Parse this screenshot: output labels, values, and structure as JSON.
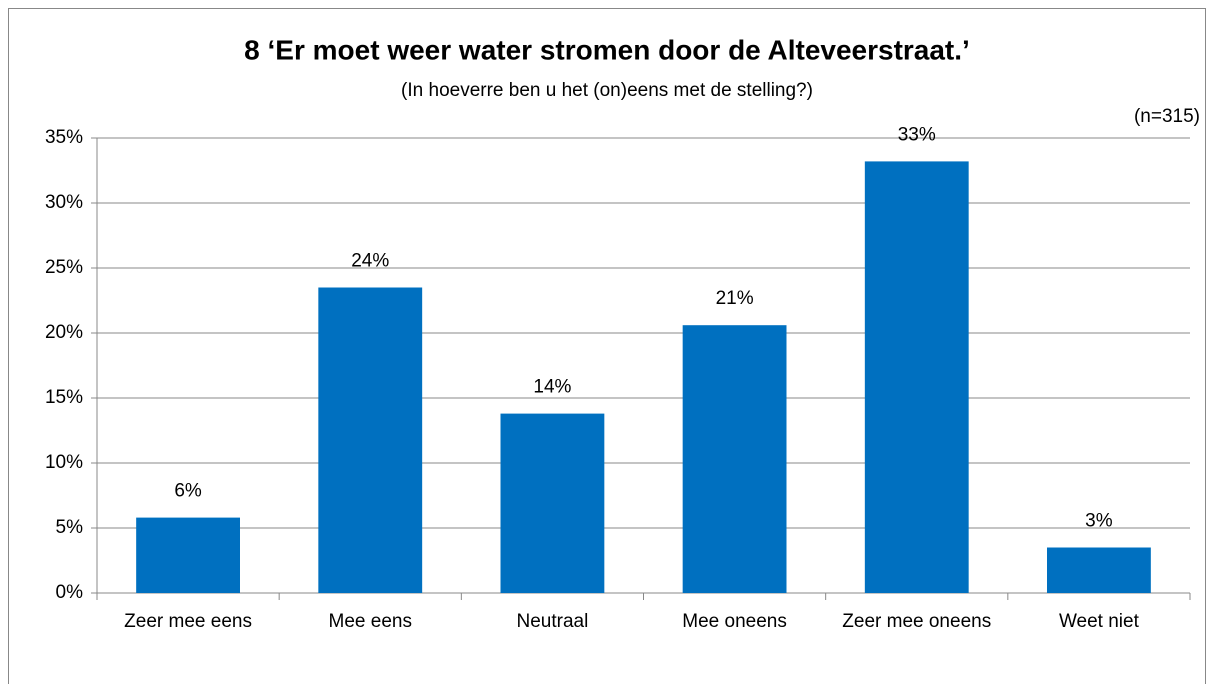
{
  "chart_data": {
    "type": "bar",
    "title": "8 ‘Er moet weer water stromen door de Alteveerstraat.’",
    "subtitle": "(In hoeverre ben u het (on)eens met de stelling?)",
    "annotation": "(n=315)",
    "categories": [
      "Zeer mee eens",
      "Mee eens",
      "Neutraal",
      "Mee oneens",
      "Zeer mee oneens",
      "Weet niet"
    ],
    "values": [
      5.8,
      23.5,
      13.8,
      20.6,
      33.2,
      3.5
    ],
    "value_labels": [
      "6%",
      "24%",
      "14%",
      "21%",
      "33%",
      "3%"
    ],
    "color": "#0070c0",
    "ylim": [
      0,
      35
    ],
    "yticks": [
      {
        "value": 0,
        "label": "0%"
      },
      {
        "value": 5,
        "label": "5%"
      },
      {
        "value": 10,
        "label": "10%"
      },
      {
        "value": 15,
        "label": "15%"
      },
      {
        "value": 20,
        "label": "20%"
      },
      {
        "value": 25,
        "label": "25%"
      },
      {
        "value": 30,
        "label": "30%"
      },
      {
        "value": 35,
        "label": "35%"
      }
    ],
    "grid": true
  }
}
